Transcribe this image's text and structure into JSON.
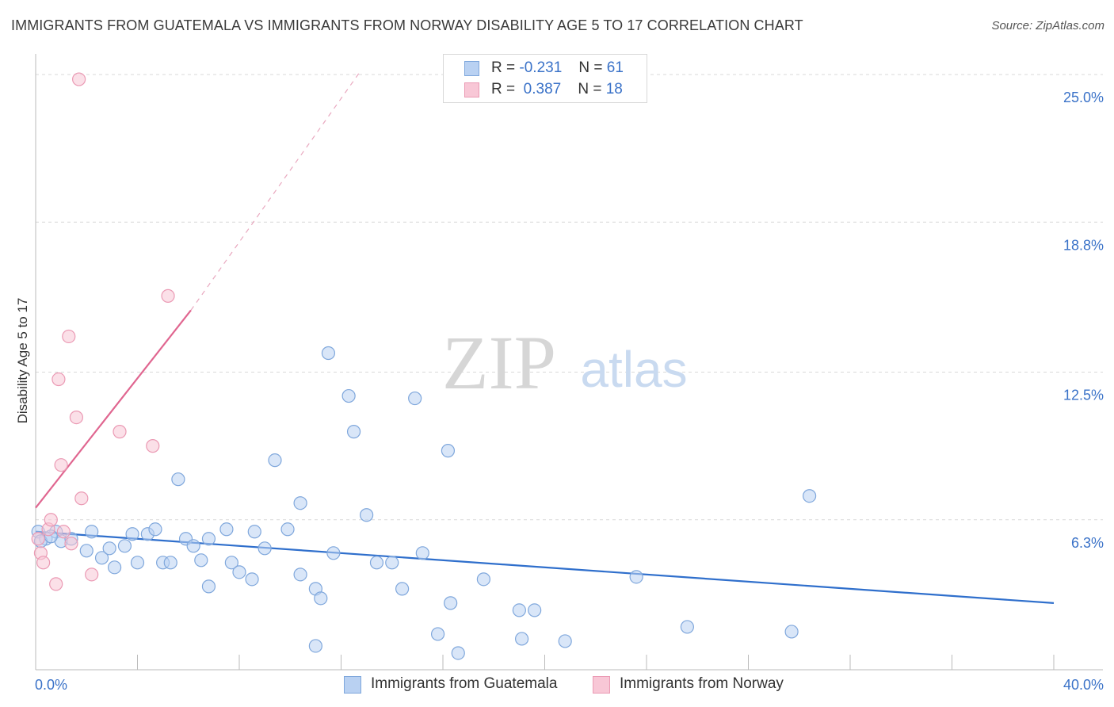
{
  "title": "IMMIGRANTS FROM GUATEMALA VS IMMIGRANTS FROM NORWAY DISABILITY AGE 5 TO 17 CORRELATION CHART",
  "source": "Source: ZipAtlas.com",
  "watermark": {
    "zip": "ZIP",
    "atlas": "atlas"
  },
  "colors": {
    "guatemala_fill": "#b9d1f2",
    "guatemala_stroke": "#7fa7dc",
    "guatemala_line": "#2f6fcc",
    "norway_fill": "#f8c7d6",
    "norway_stroke": "#eb9ab4",
    "norway_line": "#e06690",
    "axis_text": "#3a72c8",
    "grid": "#d9d9d9"
  },
  "legend": {
    "rows": [
      {
        "r_label": "R =",
        "r_value": "-0.231",
        "n_label": "N =",
        "n_value": "61",
        "series": "guatemala"
      },
      {
        "r_label": "R =",
        "r_value": "0.387",
        "n_label": "N =",
        "n_value": "18",
        "series": "norway"
      }
    ]
  },
  "bottom_legend": [
    {
      "label": "Immigrants from Guatemala",
      "series": "guatemala"
    },
    {
      "label": "Immigrants from Norway",
      "series": "norway"
    }
  ],
  "chart_data": {
    "type": "scatter",
    "title": "IMMIGRANTS FROM GUATEMALA VS IMMIGRANTS FROM NORWAY DISABILITY AGE 5 TO 17 CORRELATION CHART",
    "xlabel": "",
    "ylabel": "Disability Age 5 to 17",
    "xlim": [
      0,
      40
    ],
    "ylim": [
      0,
      25.8
    ],
    "x_tick_labels": {
      "min": "0.0%",
      "max": "40.0%"
    },
    "y_ticks": [
      6.3,
      12.5,
      18.8,
      25.0
    ],
    "y_tick_labels": [
      "6.3%",
      "12.5%",
      "18.8%",
      "25.0%"
    ],
    "grid": true,
    "series": [
      {
        "name": "Immigrants from Guatemala",
        "key": "guatemala",
        "R": -0.231,
        "N": 61,
        "points": [
          [
            0.1,
            5.8
          ],
          [
            0.4,
            5.5
          ],
          [
            0.8,
            5.8
          ],
          [
            1.0,
            5.4
          ],
          [
            1.4,
            5.5
          ],
          [
            2.2,
            5.8
          ],
          [
            2.0,
            5.0
          ],
          [
            2.6,
            4.7
          ],
          [
            3.1,
            4.3
          ],
          [
            2.9,
            5.1
          ],
          [
            3.5,
            5.2
          ],
          [
            3.8,
            5.7
          ],
          [
            4.0,
            4.5
          ],
          [
            4.4,
            5.7
          ],
          [
            4.7,
            5.9
          ],
          [
            5.0,
            4.5
          ],
          [
            5.3,
            4.5
          ],
          [
            5.6,
            8.0
          ],
          [
            5.9,
            5.5
          ],
          [
            6.2,
            5.2
          ],
          [
            6.5,
            4.6
          ],
          [
            6.8,
            3.5
          ],
          [
            6.8,
            5.5
          ],
          [
            7.5,
            5.9
          ],
          [
            7.7,
            4.5
          ],
          [
            8.0,
            4.1
          ],
          [
            8.5,
            3.8
          ],
          [
            8.6,
            5.8
          ],
          [
            9.0,
            5.1
          ],
          [
            9.4,
            8.8
          ],
          [
            9.9,
            5.9
          ],
          [
            10.4,
            7.0
          ],
          [
            10.4,
            4.0
          ],
          [
            11.0,
            1.0
          ],
          [
            11.0,
            3.4
          ],
          [
            11.2,
            3.0
          ],
          [
            11.5,
            13.3
          ],
          [
            11.7,
            4.9
          ],
          [
            12.3,
            11.5
          ],
          [
            12.5,
            10.0
          ],
          [
            13.0,
            6.5
          ],
          [
            13.4,
            4.5
          ],
          [
            14.0,
            4.5
          ],
          [
            14.4,
            3.4
          ],
          [
            14.9,
            11.4
          ],
          [
            15.2,
            4.9
          ],
          [
            15.8,
            1.5
          ],
          [
            16.2,
            9.2
          ],
          [
            16.3,
            2.8
          ],
          [
            16.6,
            0.7
          ],
          [
            17.6,
            3.8
          ],
          [
            19.0,
            2.5
          ],
          [
            19.1,
            1.3
          ],
          [
            19.6,
            2.5
          ],
          [
            20.8,
            1.2
          ],
          [
            23.6,
            3.9
          ],
          [
            25.6,
            1.8
          ],
          [
            29.7,
            1.6
          ],
          [
            30.4,
            7.3
          ],
          [
            0.2,
            5.4
          ],
          [
            0.6,
            5.6
          ]
        ],
        "trend": {
          "x": [
            0,
            40
          ],
          "y": [
            5.8,
            2.8
          ]
        }
      },
      {
        "name": "Immigrants from Norway",
        "key": "norway",
        "R": 0.387,
        "N": 18,
        "points": [
          [
            0.1,
            5.5
          ],
          [
            0.2,
            4.9
          ],
          [
            0.3,
            4.5
          ],
          [
            0.5,
            5.9
          ],
          [
            0.6,
            6.3
          ],
          [
            0.8,
            3.6
          ],
          [
            0.9,
            12.2
          ],
          [
            1.0,
            8.6
          ],
          [
            1.1,
            5.8
          ],
          [
            1.3,
            14.0
          ],
          [
            1.4,
            5.3
          ],
          [
            1.6,
            10.6
          ],
          [
            1.8,
            7.2
          ],
          [
            2.2,
            4.0
          ],
          [
            3.3,
            10.0
          ],
          [
            4.6,
            9.4
          ],
          [
            1.7,
            24.8
          ],
          [
            5.2,
            15.7
          ]
        ],
        "trend_solid": {
          "x": [
            0,
            6.1
          ],
          "y": [
            6.8,
            15.1
          ]
        },
        "trend_dashed": {
          "x": [
            6.1,
            12.8
          ],
          "y": [
            15.1,
            25.2
          ]
        }
      }
    ]
  }
}
